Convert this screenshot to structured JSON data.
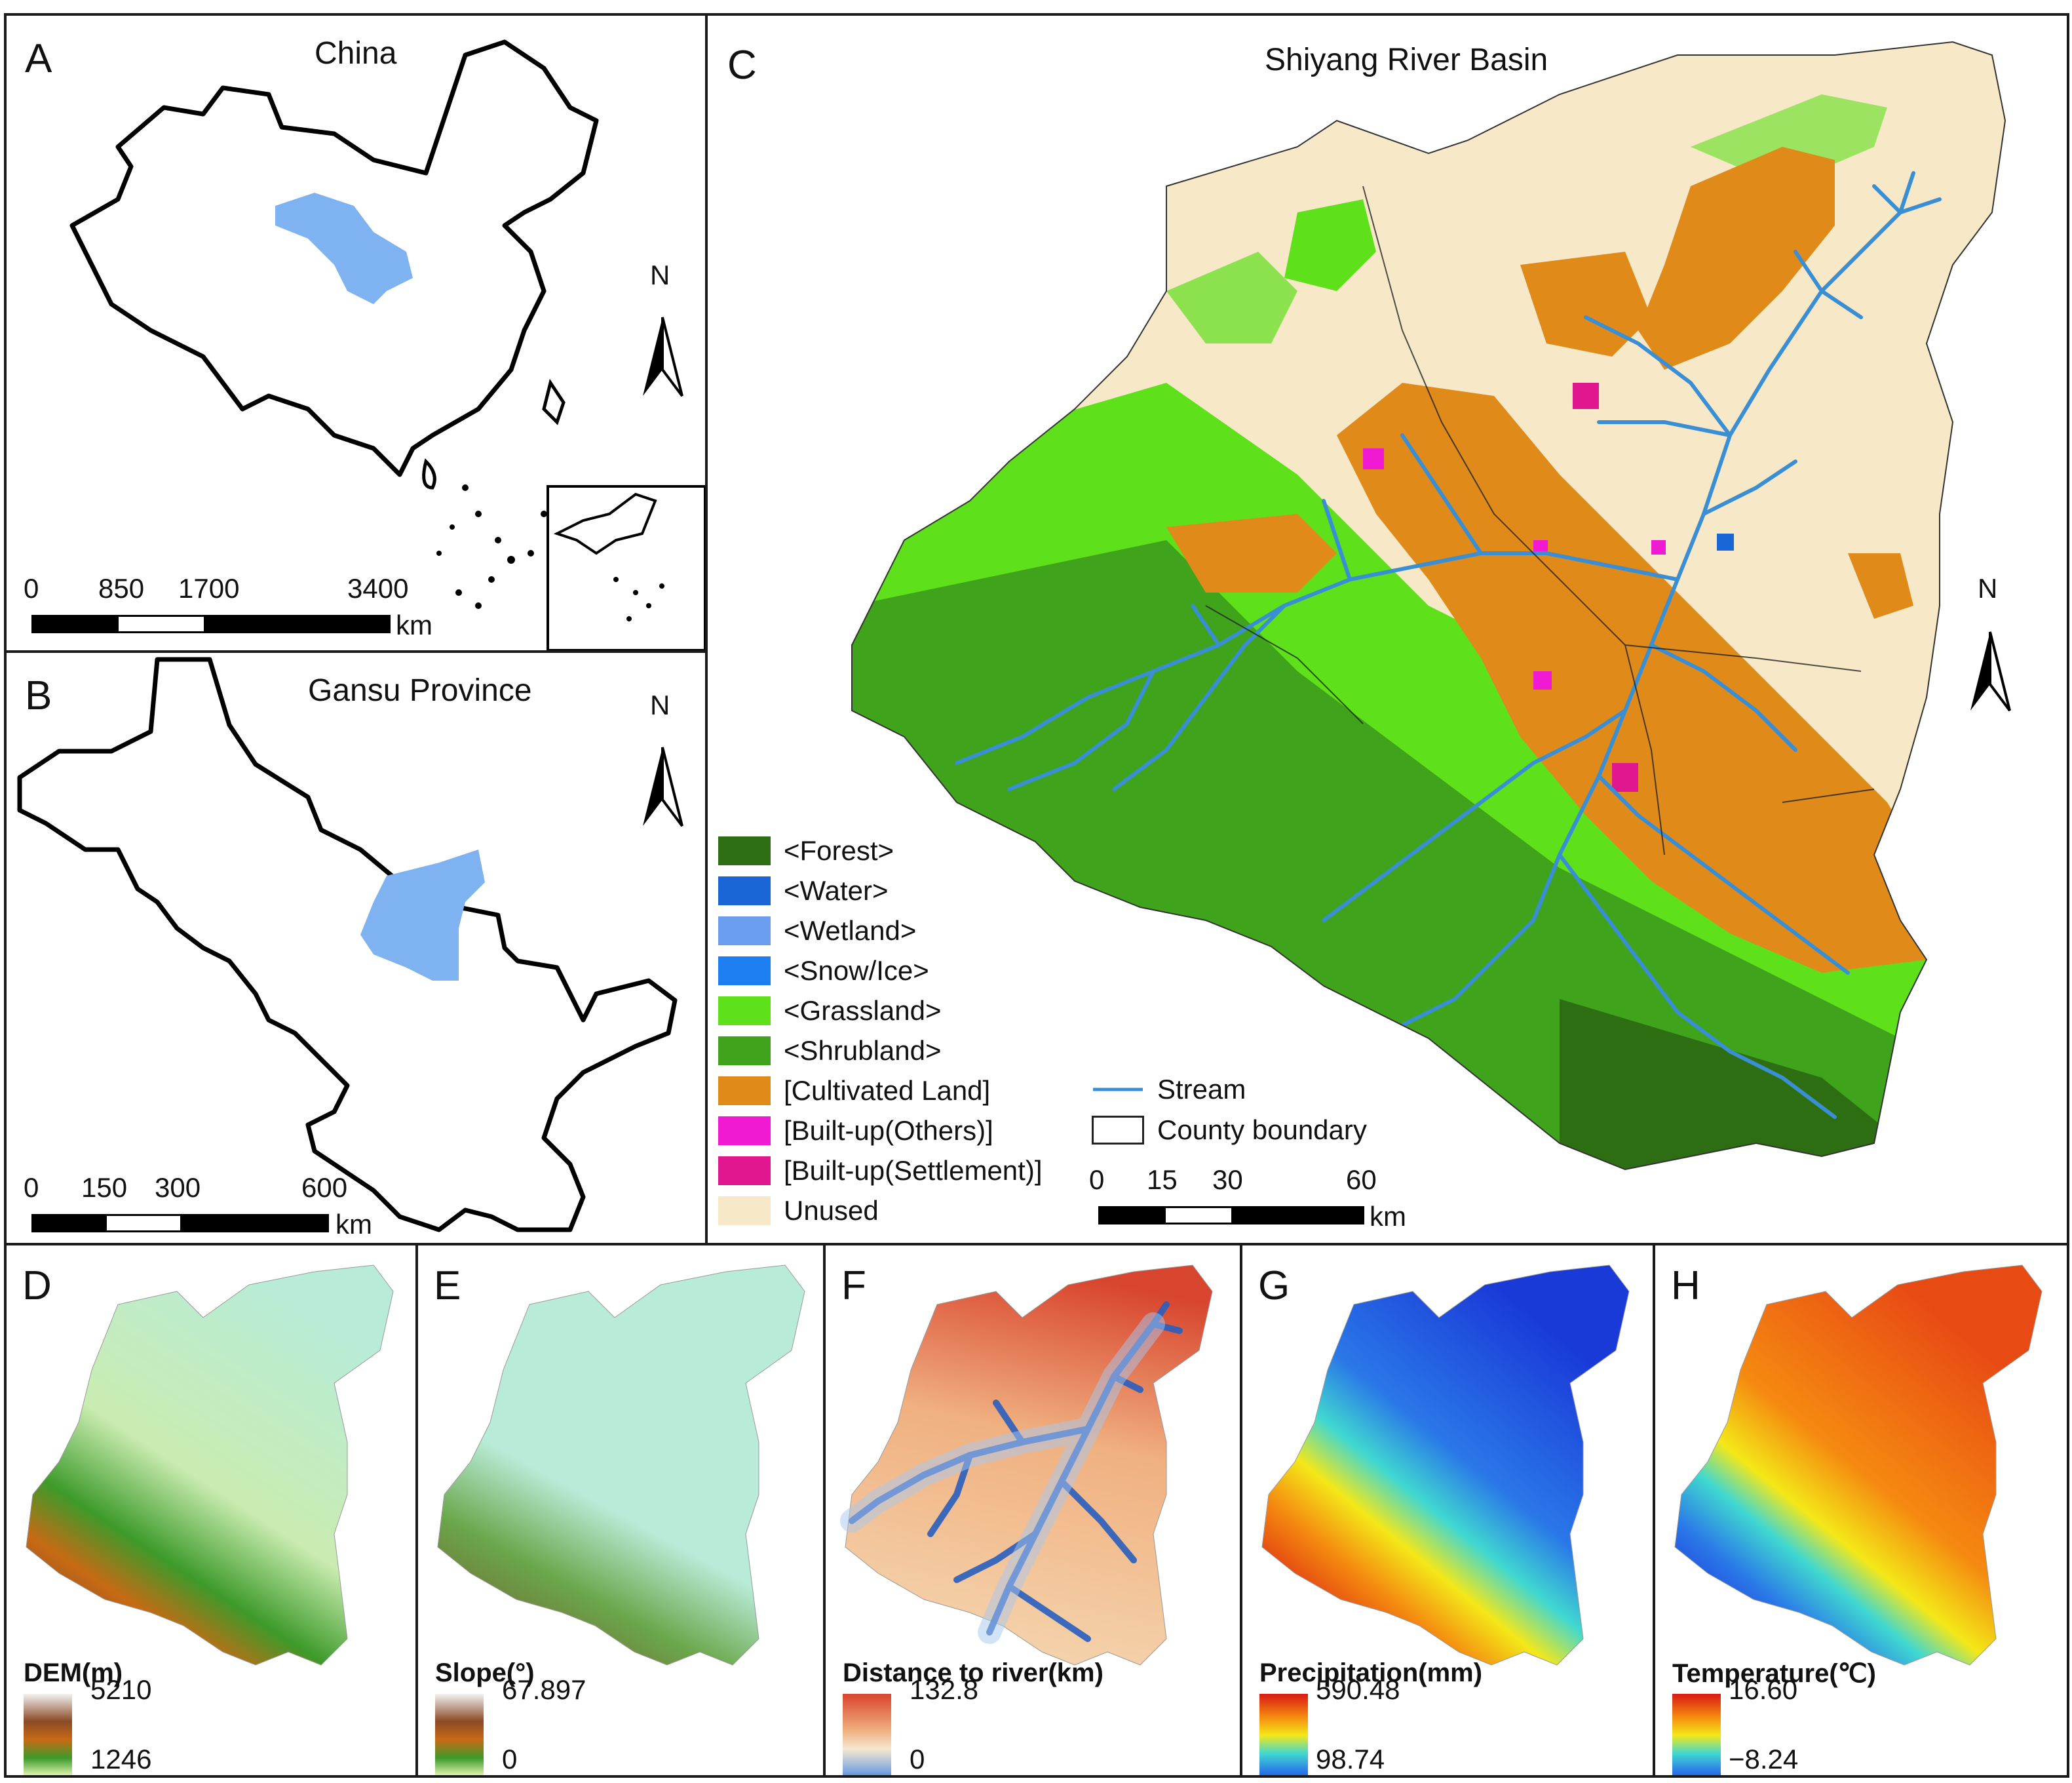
{
  "panels": {
    "a": {
      "letter": "A",
      "title": "China",
      "scale_ticks": [
        "0",
        "850",
        "1700",
        "3400"
      ],
      "scale_unit": "km",
      "north": "N"
    },
    "b": {
      "letter": "B",
      "title": "Gansu Province",
      "scale_ticks": [
        "0",
        "150",
        "300",
        "600"
      ],
      "scale_unit": "km",
      "north": "N"
    },
    "c": {
      "letter": "C",
      "title": "Shiyang River Basin",
      "scale_ticks": [
        "0",
        "15",
        "30",
        "60"
      ],
      "scale_unit": "km",
      "north": "N",
      "legend": [
        {
          "label": "<Forest>",
          "color": "#2d6e12"
        },
        {
          "label": "<Water>",
          "color": "#1a66d6"
        },
        {
          "label": "<Wetland>",
          "color": "#6c9ef0"
        },
        {
          "label": "<Snow/Ice>",
          "color": "#1d7ef2"
        },
        {
          "label": "<Grassland>",
          "color": "#5ee01a"
        },
        {
          "label": "<Shrubland>",
          "color": "#3fa41c"
        },
        {
          "label": "[Cultivated Land]",
          "color": "#e08a1a"
        },
        {
          "label": "[Built-up(Others)]",
          "color": "#f01ad2"
        },
        {
          "label": "[Built-up(Settlement)]",
          "color": "#e0178e"
        },
        {
          "label": "Unused",
          "color": "#f7e8c8"
        }
      ],
      "line_legend": [
        {
          "label": "Stream",
          "color": "#3a8fd4"
        },
        {
          "label": "County boundary",
          "color": "#222222"
        }
      ]
    },
    "d": {
      "letter": "D",
      "ramp_title": "DEM(m)",
      "max": "5210",
      "min": "1246"
    },
    "e": {
      "letter": "E",
      "ramp_title": "Slope(°)",
      "max": "67.897",
      "min": "0"
    },
    "f": {
      "letter": "F",
      "ramp_title": "Distance to river(km)",
      "max": "132.8",
      "min": "0"
    },
    "g": {
      "letter": "G",
      "ramp_title": "Precipitation(mm)",
      "max": "590.48",
      "min": "98.74"
    },
    "h": {
      "letter": "H",
      "ramp_title": "Temperature(℃)",
      "max": "16.60",
      "min": "−8.24"
    }
  },
  "colors": {
    "highlight": "#7fb2f0",
    "unused": "#f7e8c8",
    "cultivated": "#e08a1a",
    "grassland": "#5ee01a",
    "forest": "#2d6e12",
    "stream": "#3a8fd4"
  }
}
